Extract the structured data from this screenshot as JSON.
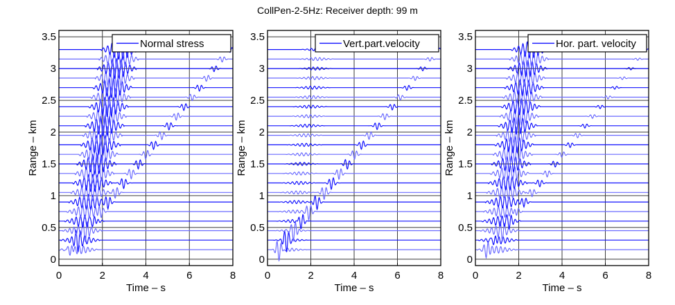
{
  "figure": {
    "title": "CollPen-2-5Hz:  Receiver depth: 99 m"
  },
  "chart_data": [
    {
      "type": "line",
      "title": "",
      "legend": "Normal stress",
      "legend_position": "top-right",
      "xlabel": "Time – s",
      "ylabel": "Range – km",
      "xlim": [
        0,
        8
      ],
      "ylim": [
        -0.1,
        3.6
      ],
      "xticks": [
        0,
        2,
        4,
        6,
        8
      ],
      "yticks": [
        0,
        0.5,
        1,
        1.5,
        2,
        2.5,
        3,
        3.5
      ],
      "ytick_labels": [
        "0",
        "0.5",
        "1",
        "1.5",
        "2",
        "2.5",
        "3",
        "3.5"
      ],
      "grid": true,
      "trace_ranges_km": [
        0.15,
        0.3,
        0.45,
        0.6,
        0.75,
        0.9,
        1.05,
        1.2,
        1.35,
        1.5,
        1.65,
        1.8,
        1.95,
        2.1,
        2.25,
        2.4,
        2.55,
        2.7,
        2.85,
        3.0,
        3.15,
        3.3
      ],
      "arrivals": [
        {
          "name": "fast",
          "t0_s": 0.2,
          "slowness_s_per_km": 0.62,
          "amplitude_km": 0.16,
          "cycles": 6
        },
        {
          "name": "slow",
          "t0_s": 0.05,
          "slowness_s_per_km": 2.33,
          "amplitude_km": 0.13,
          "cycles": 1.2,
          "decay": 0.85
        }
      ],
      "series_color": "#0000ff"
    },
    {
      "type": "line",
      "title": "",
      "legend": "Vert.part.velocity",
      "legend_position": "top-right",
      "xlabel": "Time – s",
      "ylabel": "Range – km",
      "xlim": [
        0,
        8
      ],
      "ylim": [
        -0.1,
        3.6
      ],
      "xticks": [
        0,
        2,
        4,
        6,
        8
      ],
      "yticks": [
        0,
        0.5,
        1,
        1.5,
        2,
        2.5,
        3,
        3.5
      ],
      "ytick_labels": [
        "0",
        "0.5",
        "1",
        "1.5",
        "2",
        "2.5",
        "3",
        "3.5"
      ],
      "grid": true,
      "trace_ranges_km": [
        0.15,
        0.3,
        0.45,
        0.6,
        0.75,
        0.9,
        1.05,
        1.2,
        1.35,
        1.5,
        1.65,
        1.8,
        1.95,
        2.1,
        2.25,
        2.4,
        2.55,
        2.7,
        2.85,
        3.0,
        3.15,
        3.3
      ],
      "arrivals": [
        {
          "name": "fast",
          "t0_s": 0.45,
          "slowness_s_per_km": 0.42,
          "amplitude_km": 0.025,
          "cycles": 5
        },
        {
          "name": "slow",
          "t0_s": 0.05,
          "slowness_s_per_km": 2.33,
          "amplitude_km": 0.2,
          "cycles": 1.2,
          "decay": 0.75
        }
      ],
      "series_color": "#0000ff"
    },
    {
      "type": "line",
      "title": "",
      "legend": "Hor. part. velocity",
      "legend_position": "top-right",
      "xlabel": "Time – s",
      "ylabel": "Range – km",
      "xlim": [
        0,
        8
      ],
      "ylim": [
        -0.1,
        3.6
      ],
      "xticks": [
        0,
        2,
        4,
        6,
        8
      ],
      "yticks": [
        0,
        0.5,
        1,
        1.5,
        2,
        2.5,
        3,
        3.5
      ],
      "ytick_labels": [
        "0",
        "0.5",
        "1",
        "1.5",
        "2",
        "2.5",
        "3",
        "3.5"
      ],
      "grid": true,
      "trace_ranges_km": [
        0.15,
        0.3,
        0.45,
        0.6,
        0.75,
        0.9,
        1.05,
        1.2,
        1.35,
        1.5,
        1.65,
        1.8,
        1.95,
        2.1,
        2.25,
        2.4,
        2.55,
        2.7,
        2.85,
        3.0,
        3.15,
        3.3
      ],
      "arrivals": [
        {
          "name": "fast",
          "t0_s": 0.3,
          "slowness_s_per_km": 0.5,
          "amplitude_km": 0.13,
          "cycles": 6
        },
        {
          "name": "slow",
          "t0_s": 0.05,
          "slowness_s_per_km": 2.33,
          "amplitude_km": 0.12,
          "cycles": 1.2,
          "decay": 0.75
        }
      ],
      "series_color": "#0000ff"
    }
  ]
}
